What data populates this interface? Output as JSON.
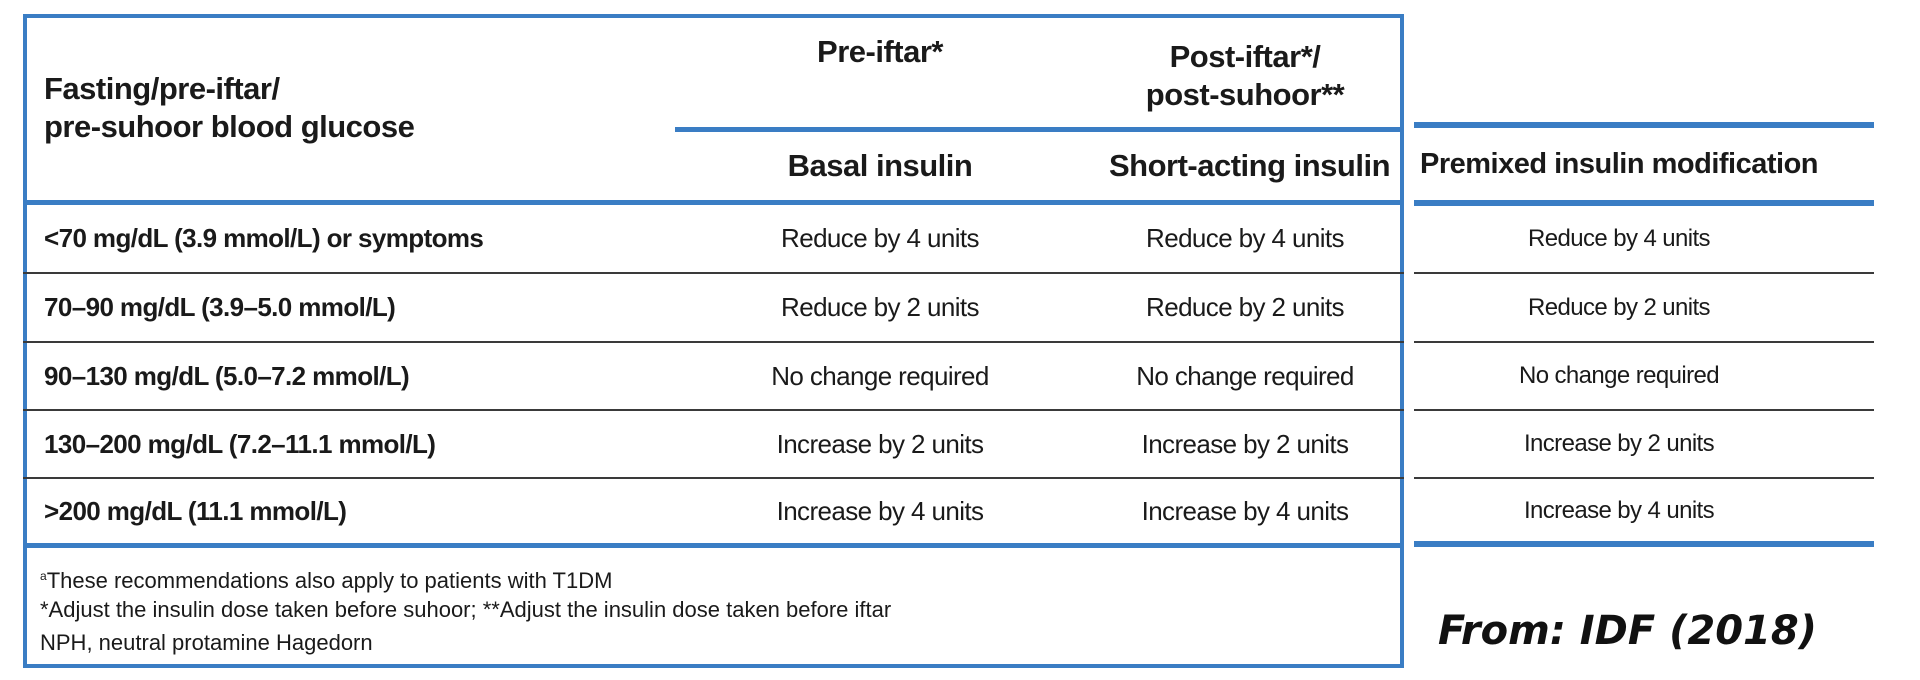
{
  "table": {
    "row_header_label": "Fasting/pre-iftar/\npre-suhoor blood glucose",
    "group_headers": [
      "Pre-iftar*",
      "Post-iftar*/\npost-suhoor**"
    ],
    "sub_headers": [
      "Basal insulin",
      "Short-acting insulin"
    ],
    "rows": [
      {
        "label": "<70 mg/dL (3.9 mmol/L) or symptoms",
        "basal": "Reduce by 4 units",
        "short": "Reduce by 4 units"
      },
      {
        "label": "70–90 mg/dL (3.9–5.0 mmol/L)",
        "basal": "Reduce by 2 units",
        "short": "Reduce by 2 units"
      },
      {
        "label": "90–130 mg/dL (5.0–7.2 mmol/L)",
        "basal": "No change required",
        "short": "No change required"
      },
      {
        "label": "130–200 mg/dL (7.2–11.1 mmol/L)",
        "basal": "Increase by 2 units",
        "short": "Increase by 2 units"
      },
      {
        "label": ">200 mg/dL (11.1 mmol/L)",
        "basal": "Increase by 4 units",
        "short": "Increase by 4 units"
      }
    ],
    "footnotes": [
      "These recommendations also apply to patients with T1DM",
      "*Adjust the insulin dose taken before suhoor; **Adjust the insulin dose taken before iftar",
      "NPH, neutral protamine Hagedorn"
    ],
    "footnote_marker": "a"
  },
  "premixed": {
    "header": "Premixed insulin modification",
    "values": [
      "Reduce by 4 units",
      "Reduce by 2 units",
      "No change required",
      "Increase by 2 units",
      "Increase by 4 units"
    ]
  },
  "source": "From: IDF (2018)",
  "colors": {
    "accent": "#3a7dc4",
    "text": "#1a1a1a"
  }
}
